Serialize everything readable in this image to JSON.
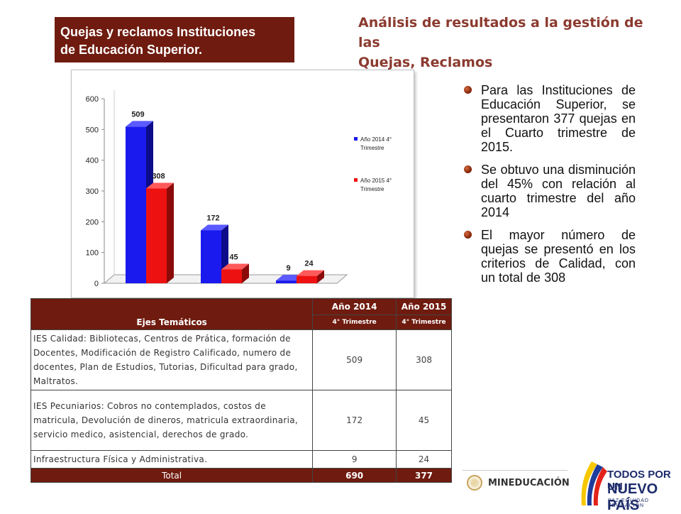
{
  "header": {
    "title_lines": [
      "Quejas y reclamos Instituciones",
      "de  Educación  Superior."
    ],
    "heading_lines": [
      "Análisis de resultados a la gestión de las",
      "Quejas, Reclamos"
    ]
  },
  "colors": {
    "brand": "#6f1b0f",
    "heading": "#8b3a2f",
    "series_2014": "#1a1aee",
    "series_2015": "#ee1111"
  },
  "chart_data": {
    "type": "bar",
    "categories": [
      "",
      "",
      ""
    ],
    "series": [
      {
        "name": "Año 2014 4° Trimestre",
        "values": [
          509,
          172,
          9
        ]
      },
      {
        "name": "Año 2015 4° Trimestre",
        "values": [
          308,
          45,
          24
        ]
      }
    ],
    "title": "",
    "xlabel": "",
    "ylabel": "",
    "ylim": [
      0,
      600
    ],
    "yticks": [
      0,
      100,
      200,
      300,
      400,
      500,
      600
    ],
    "grid": false,
    "legend": "right",
    "style": "3d-columns"
  },
  "bullets": [
    "Para las Instituciones de Educación Superior, se presentaron 377 quejas en el Cuarto trimestre de 2015.",
    "Se obtuvo una disminución del 45% con relación al cuarto trimestre del año 2014",
    "El mayor número de quejas se presentó en los criterios de Calidad, con un total de 308"
  ],
  "table": {
    "col_header": "Ejes Temáticos",
    "year_headers": [
      "Año 2014",
      "Año 2015"
    ],
    "period_headers": [
      "4° Trimestre",
      "4° Trimestre"
    ],
    "rows": [
      {
        "theme": "IES Calidad: Bibliotecas, Centros de Prática, formación de Docentes, Modificación de Registro Calificado, numero de docentes, Plan de Estudios, Tutorias, Dificultad para grado, Maltratos.",
        "v2014": "509",
        "v2015": "308"
      },
      {
        "theme": "IES Pecuniarios:  Cobros no contemplados, costos de matricula, Devolución de dineros, matricula extraordinaria, servicio medico, asistencial, derechos de  grado.",
        "v2014": "172",
        "v2015": "45"
      },
      {
        "theme": "Infraestructura Física y Administrativa.",
        "v2014": "9",
        "v2015": "24"
      }
    ],
    "total": {
      "label": "Total",
      "v2014": "690",
      "v2015": "377"
    }
  },
  "logos": {
    "mineducacion": "MINEDUCACIÓN",
    "todos_line1": "TODOS POR UN",
    "todos_line2": "NUEVO PAÍS",
    "todos_tagline": "PAZ  EQUIDAD  EDUCACIÓN"
  }
}
